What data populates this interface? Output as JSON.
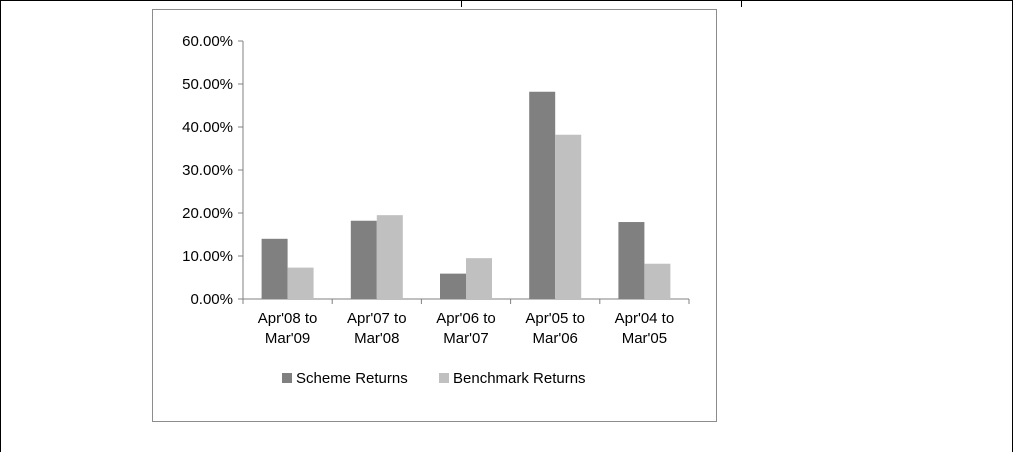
{
  "chart_data": {
    "type": "bar",
    "categories": [
      [
        "Apr'08 to",
        "Mar'09"
      ],
      [
        "Apr'07 to",
        "Mar'08"
      ],
      [
        "Apr'06 to",
        "Mar'07"
      ],
      [
        "Apr'05 to",
        "Mar'06"
      ],
      [
        "Apr'04 to",
        "Mar'05"
      ]
    ],
    "series": [
      {
        "name": "Scheme Returns",
        "color": "#808080",
        "values": [
          14.0,
          18.2,
          5.9,
          48.2,
          17.9
        ]
      },
      {
        "name": "Benchmark Returns",
        "color": "#c0c0c0",
        "values": [
          7.3,
          19.5,
          9.5,
          38.2,
          8.2
        ]
      }
    ],
    "y_ticks": [
      "0.00%",
      "10.00%",
      "20.00%",
      "30.00%",
      "40.00%",
      "50.00%",
      "60.00%"
    ],
    "ylim": [
      0,
      60
    ],
    "grid": false,
    "legend_position": "bottom",
    "title": "",
    "xlabel": "",
    "ylabel": ""
  }
}
